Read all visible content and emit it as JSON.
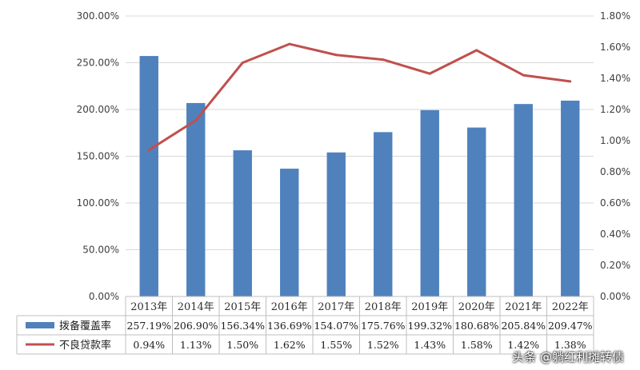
{
  "chart_data": {
    "type": "bar",
    "categories": [
      "2013年",
      "2014年",
      "2015年",
      "2016年",
      "2017年",
      "2018年",
      "2019年",
      "2020年",
      "2021年",
      "2022年"
    ],
    "series": [
      {
        "name": "拨备覆盖率",
        "type": "bar",
        "axis": "left",
        "color": "#4F81BD",
        "values": [
          257.19,
          206.9,
          156.34,
          136.69,
          154.07,
          175.76,
          199.32,
          180.68,
          205.84,
          209.47
        ],
        "labels": [
          "257.19%",
          "206.90%",
          "156.34%",
          "136.69%",
          "154.07%",
          "175.76%",
          "199.32%",
          "180.68%",
          "205.84%",
          "209.47%"
        ]
      },
      {
        "name": "不良贷款率",
        "type": "line",
        "axis": "right",
        "color": "#C0504D",
        "values": [
          0.94,
          1.13,
          1.5,
          1.62,
          1.55,
          1.52,
          1.43,
          1.58,
          1.42,
          1.38
        ],
        "labels": [
          "0.94%",
          "1.13%",
          "1.50%",
          "1.62%",
          "1.55%",
          "1.52%",
          "1.43%",
          "1.58%",
          "1.42%",
          "1.38%"
        ]
      }
    ],
    "ylim_left": [
      0,
      300
    ],
    "yticks_left": [
      "0.00%",
      "50.00%",
      "100.00%",
      "150.00%",
      "200.00%",
      "250.00%",
      "300.00%"
    ],
    "ylim_right": [
      0,
      1.8
    ],
    "yticks_right": [
      "0.00%",
      "0.20%",
      "0.40%",
      "0.60%",
      "0.80%",
      "1.00%",
      "1.20%",
      "1.40%",
      "1.60%",
      "1.80%"
    ],
    "grid": true,
    "legend": "data-table"
  },
  "watermark": "头条 @躺红利摊转债"
}
